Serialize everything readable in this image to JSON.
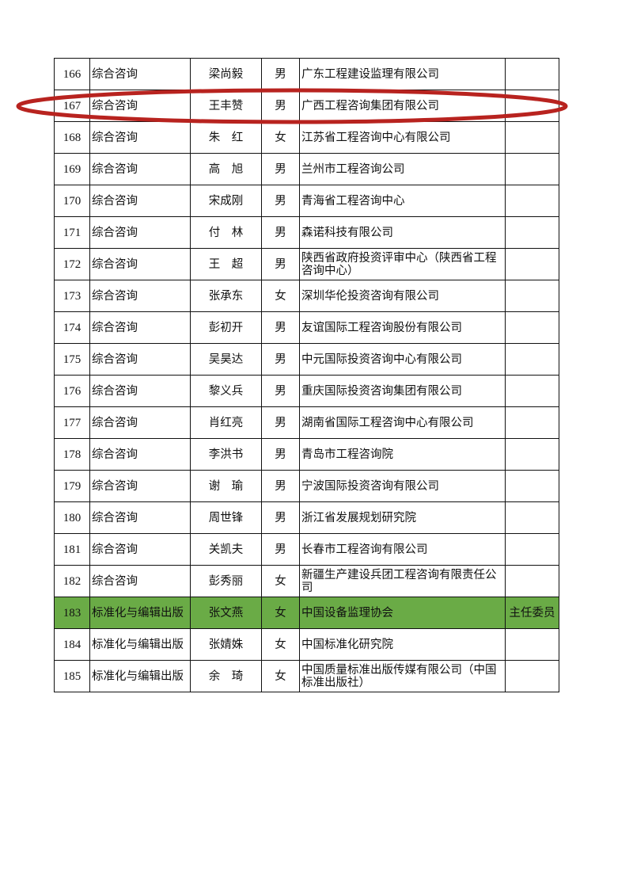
{
  "highlight_color": "#6aab46",
  "annotation_color": "#b8231f",
  "rows": [
    {
      "no": "166",
      "category": "综合咨询",
      "name": "梁尚毅",
      "gender": "男",
      "org": "广东工程建设监理有限公司",
      "role": ""
    },
    {
      "no": "167",
      "category": "综合咨询",
      "name": "王丰赞",
      "gender": "男",
      "org": "广西工程咨询集团有限公司",
      "role": "",
      "circled": true
    },
    {
      "no": "168",
      "category": "综合咨询",
      "name": "朱　红",
      "gender": "女",
      "org": "江苏省工程咨询中心有限公司",
      "role": ""
    },
    {
      "no": "169",
      "category": "综合咨询",
      "name": "高　旭",
      "gender": "男",
      "org": "兰州市工程咨询公司",
      "role": ""
    },
    {
      "no": "170",
      "category": "综合咨询",
      "name": "宋成刚",
      "gender": "男",
      "org": "青海省工程咨询中心",
      "role": ""
    },
    {
      "no": "171",
      "category": "综合咨询",
      "name": "付　林",
      "gender": "男",
      "org": "森诺科技有限公司",
      "role": ""
    },
    {
      "no": "172",
      "category": "综合咨询",
      "name": "王　超",
      "gender": "男",
      "org": "陕西省政府投资评审中心（陕西省工程咨询中心）",
      "role": ""
    },
    {
      "no": "173",
      "category": "综合咨询",
      "name": "张承东",
      "gender": "女",
      "org": "深圳华伦投资咨询有限公司",
      "role": ""
    },
    {
      "no": "174",
      "category": "综合咨询",
      "name": "彭初开",
      "gender": "男",
      "org": "友谊国际工程咨询股份有限公司",
      "role": ""
    },
    {
      "no": "175",
      "category": "综合咨询",
      "name": "吴昊达",
      "gender": "男",
      "org": "中元国际投资咨询中心有限公司",
      "role": ""
    },
    {
      "no": "176",
      "category": "综合咨询",
      "name": "黎义兵",
      "gender": "男",
      "org": "重庆国际投资咨询集团有限公司",
      "role": ""
    },
    {
      "no": "177",
      "category": "综合咨询",
      "name": "肖红亮",
      "gender": "男",
      "org": "湖南省国际工程咨询中心有限公司",
      "role": ""
    },
    {
      "no": "178",
      "category": "综合咨询",
      "name": "李洪书",
      "gender": "男",
      "org": "青岛市工程咨询院",
      "role": ""
    },
    {
      "no": "179",
      "category": "综合咨询",
      "name": "谢　瑜",
      "gender": "男",
      "org": "宁波国际投资咨询有限公司",
      "role": ""
    },
    {
      "no": "180",
      "category": "综合咨询",
      "name": "周世锋",
      "gender": "男",
      "org": "浙江省发展规划研究院",
      "role": ""
    },
    {
      "no": "181",
      "category": "综合咨询",
      "name": "关凯夫",
      "gender": "男",
      "org": "长春市工程咨询有限公司",
      "role": ""
    },
    {
      "no": "182",
      "category": "综合咨询",
      "name": "彭秀丽",
      "gender": "女",
      "org": "新疆生产建设兵团工程咨询有限责任公司",
      "role": ""
    },
    {
      "no": "183",
      "category": "标准化与编辑出版",
      "name": "张文燕",
      "gender": "女",
      "org": "中国设备监理协会",
      "role": "主任委员",
      "highlighted": true
    },
    {
      "no": "184",
      "category": "标准化与编辑出版",
      "name": "张婧姝",
      "gender": "女",
      "org": "中国标准化研究院",
      "role": ""
    },
    {
      "no": "185",
      "category": "标准化与编辑出版",
      "name": "余　琦",
      "gender": "女",
      "org": "中国质量标准出版传媒有限公司（中国标准出版社）",
      "role": ""
    }
  ]
}
